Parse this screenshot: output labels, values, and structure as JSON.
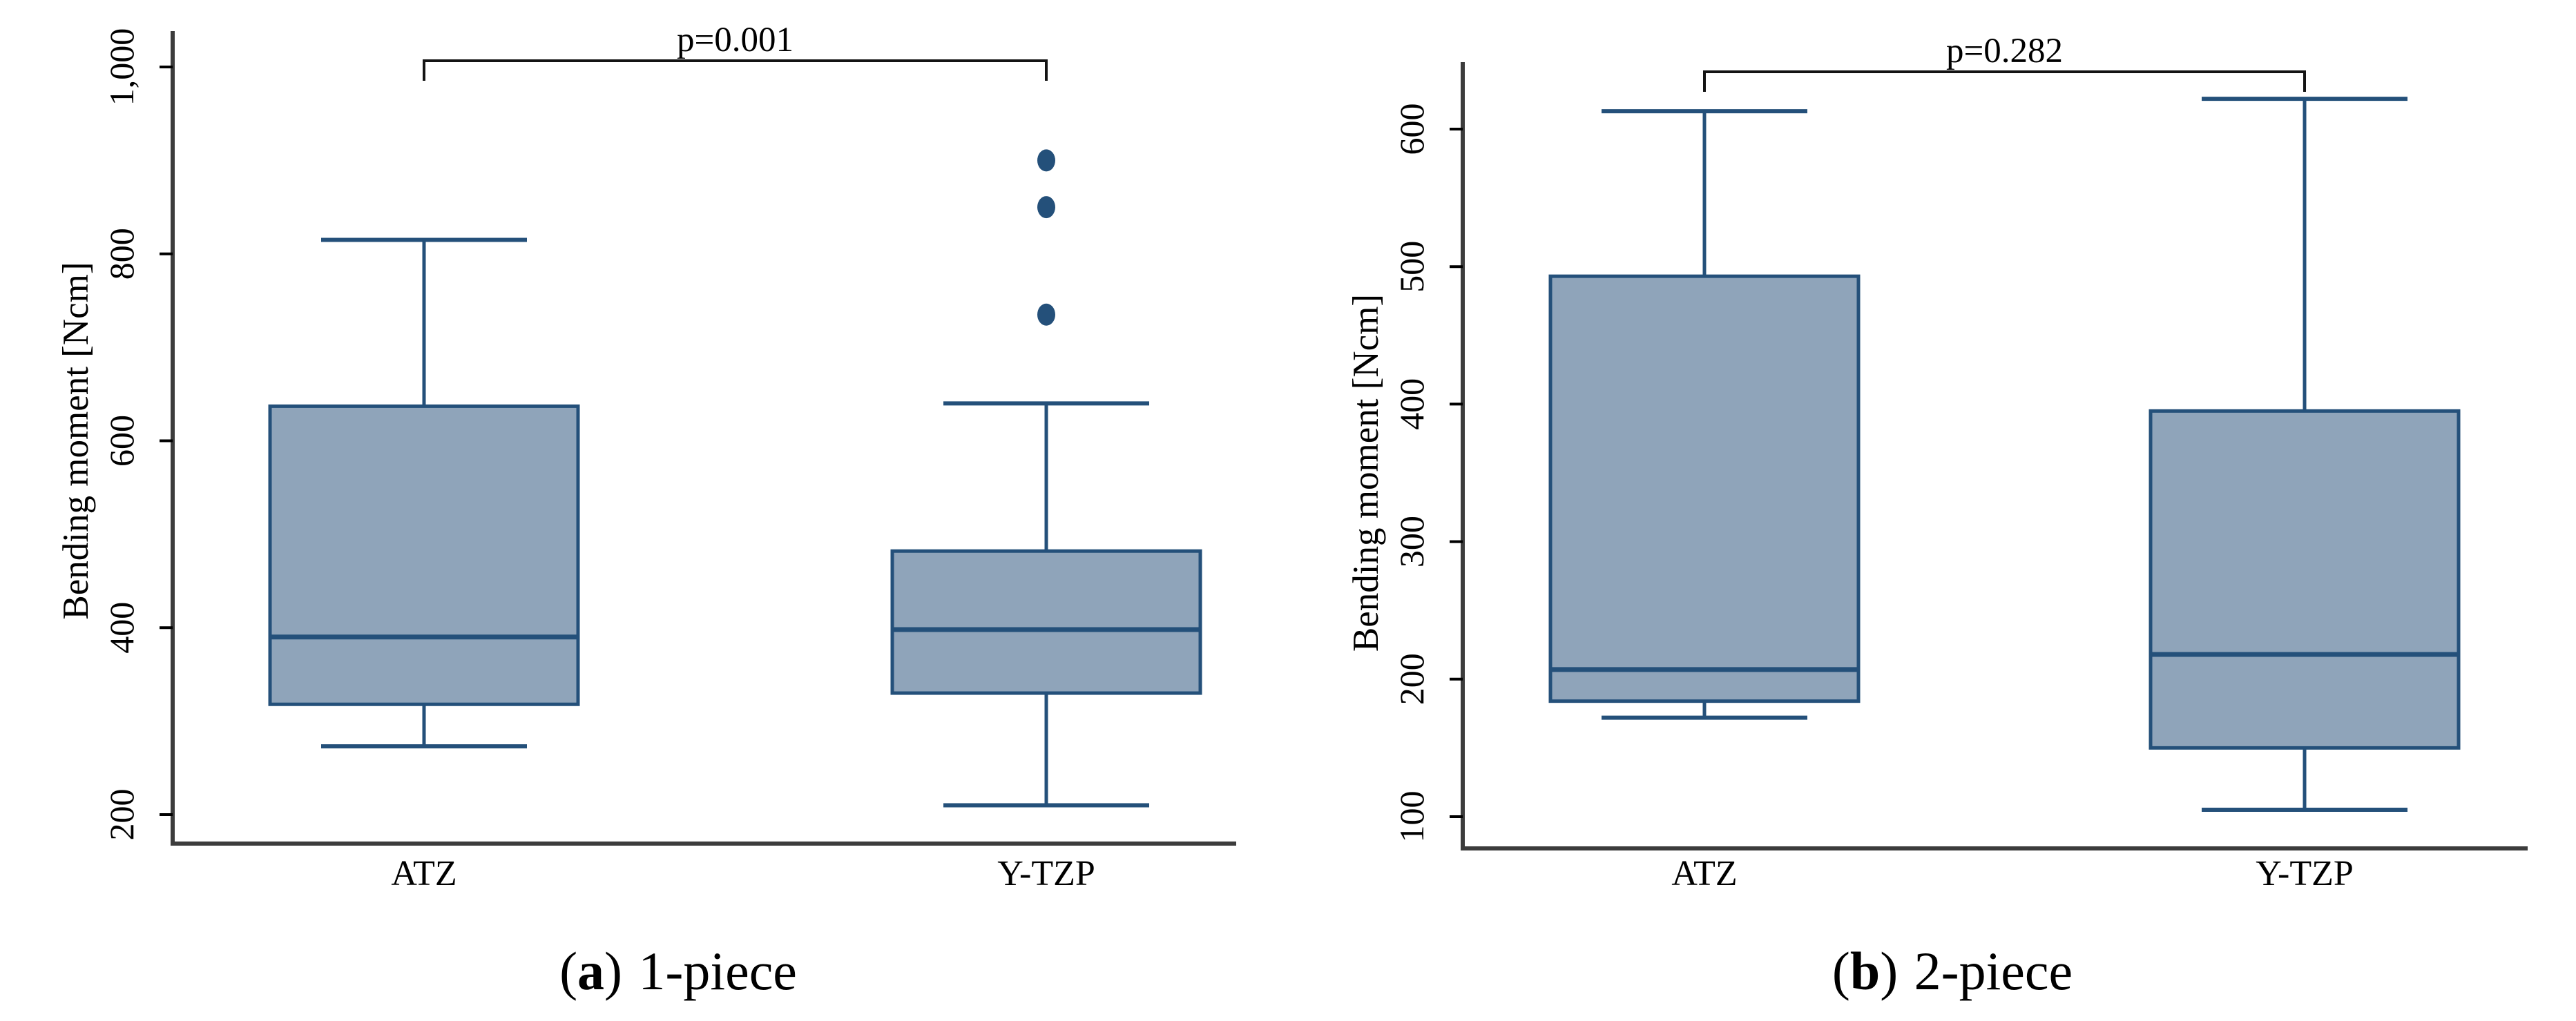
{
  "figure": {
    "background": "#ffffff",
    "captions": [
      {
        "prefix": "(",
        "letter": "a",
        "suffix": ")",
        "label": "1-piece"
      },
      {
        "prefix": "(",
        "letter": "b",
        "suffix": ")",
        "label": "2-piece"
      }
    ]
  },
  "colors": {
    "box_fill": "#8FA4BA",
    "box_stroke": "#24507A",
    "outlier": "#24507A",
    "axis_spine": "#3C3C3C",
    "tick": "#000000",
    "text": "#000000",
    "bracket": "#141414"
  },
  "chart_data": [
    {
      "type": "box",
      "panel": "a",
      "caption": "(a) 1-piece",
      "ylabel": "Bending moment [Ncm]",
      "ylim": [
        170,
        1035
      ],
      "yticks": [
        200,
        400,
        600,
        800,
        1000
      ],
      "ytick_labels": [
        "200",
        "400",
        "600",
        "800",
        "1,000"
      ],
      "grid": false,
      "legend": "none",
      "categories": [
        "ATZ",
        "Y-TZP"
      ],
      "comparison": {
        "groups": [
          "ATZ",
          "Y-TZP"
        ],
        "label": "p=0.001"
      },
      "series": [
        {
          "name": "ATZ",
          "whisker_low": 273,
          "q1": 318,
          "median": 390,
          "q3": 637,
          "whisker_high": 815,
          "outliers": []
        },
        {
          "name": "Y-TZP",
          "whisker_low": 210,
          "q1": 330,
          "median": 398,
          "q3": 482,
          "whisker_high": 640,
          "outliers": [
            735,
            850,
            900
          ]
        }
      ]
    },
    {
      "type": "box",
      "panel": "b",
      "caption": "(b) 2-piece",
      "ylabel": "Bending moment [Ncm]",
      "ylim": [
        77,
        647
      ],
      "yticks": [
        100,
        200,
        300,
        400,
        500,
        600
      ],
      "ytick_labels": [
        "100",
        "200",
        "300",
        "400",
        "500",
        "600"
      ],
      "grid": false,
      "legend": "none",
      "categories": [
        "ATZ",
        "Y-TZP"
      ],
      "comparison": {
        "groups": [
          "ATZ",
          "Y-TZP"
        ],
        "label": "p=0.282"
      },
      "series": [
        {
          "name": "ATZ",
          "whisker_low": 172,
          "q1": 184,
          "median": 207,
          "q3": 493,
          "whisker_high": 613,
          "outliers": []
        },
        {
          "name": "Y-TZP",
          "whisker_low": 105,
          "q1": 150,
          "median": 218,
          "q3": 395,
          "whisker_high": 622,
          "outliers": []
        }
      ]
    }
  ]
}
